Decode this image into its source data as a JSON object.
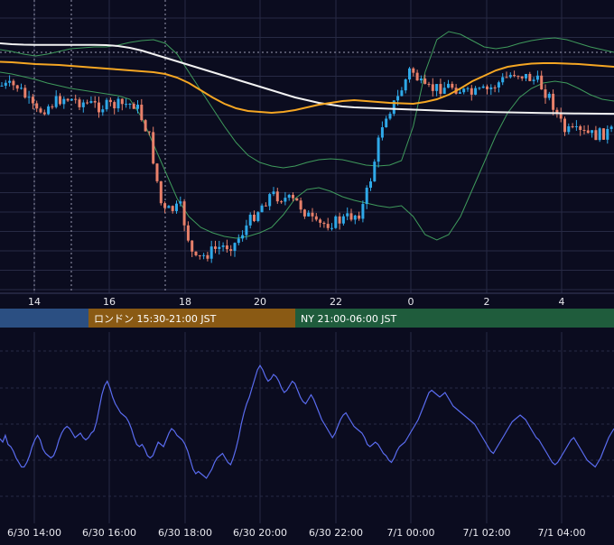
{
  "chart_data": [
    {
      "type": "candlestick",
      "x_ticks": [
        "14",
        "16",
        "18",
        "20",
        "22",
        "0",
        "2",
        "4"
      ],
      "sessions": [
        {
          "label": "",
          "color": "#2b4f82"
        },
        {
          "label": "ロンドン 15:30-21:00 JST",
          "color": "#8a5a14"
        },
        {
          "label": "NY 21:00-06:00 JST",
          "color": "#1f5c3c"
        }
      ],
      "colors": {
        "background": "#0b0c1f",
        "grid": "#272a44",
        "up_candle": "#2fa9e8",
        "down_candle": "#e8806a",
        "ema": "#f5a623",
        "long_ma": "#f2f2f2",
        "bollinger": "#3f9a5c",
        "oscillator": "#5a6cf0"
      },
      "ema": [
        28.5,
        29,
        30,
        31,
        31.5,
        32,
        33,
        34,
        35,
        36,
        37,
        38,
        39,
        40,
        42,
        46,
        52,
        60,
        68,
        75,
        80,
        83,
        84,
        85,
        84,
        82,
        79,
        76,
        74,
        72,
        71,
        72,
        73,
        74,
        74.5,
        75,
        73,
        70,
        65,
        58,
        50,
        44,
        38,
        34,
        32,
        30.5,
        30,
        30,
        30.5,
        31,
        32,
        33,
        34
      ],
      "long_ma": [
        8,
        9,
        9.5,
        9.7,
        9.8,
        9.8,
        9.7,
        9.7,
        9.8,
        10,
        11,
        13,
        16,
        20,
        24,
        28,
        32,
        36,
        40,
        44,
        48,
        52,
        56,
        60,
        64,
        68,
        71,
        74,
        76,
        78,
        79,
        79.5,
        80,
        80.5,
        81,
        81.5,
        82,
        82.5,
        83,
        83.3,
        83.6,
        83.9,
        84.2,
        84.5,
        84.7,
        85,
        85.2,
        85.4,
        85.6,
        85.8,
        85.9,
        86,
        86.1
      ],
      "bb_upper": [
        15,
        17,
        20,
        22,
        20,
        17,
        14,
        13,
        12,
        12,
        10,
        7,
        5,
        4,
        8,
        20,
        40,
        60,
        80,
        100,
        118,
        132,
        140,
        144,
        146,
        144,
        140,
        137,
        136,
        137,
        140,
        143,
        144,
        143,
        138,
        100,
        40,
        4,
        -5,
        -2,
        5,
        12,
        14,
        12,
        8,
        5,
        3,
        2,
        4,
        8,
        12,
        15,
        18
      ],
      "bb_lower": [
        40,
        42,
        45,
        48,
        52,
        55,
        58,
        60,
        62,
        64,
        66,
        70,
        90,
        120,
        150,
        180,
        200,
        212,
        218,
        222,
        224,
        222,
        218,
        212,
        198,
        180,
        170,
        168,
        172,
        178,
        182,
        185,
        188,
        190,
        188,
        200,
        220,
        226,
        220,
        200,
        170,
        140,
        110,
        85,
        68,
        58,
        52,
        50,
        52,
        58,
        65,
        70,
        72
      ],
      "oscillator": [
        35,
        32,
        38,
        30,
        28,
        24,
        18,
        14,
        10,
        10,
        14,
        20,
        28,
        34,
        38,
        34,
        26,
        22,
        20,
        18,
        20,
        26,
        34,
        40,
        44,
        46,
        44,
        40,
        36,
        38,
        40,
        36,
        34,
        36,
        40,
        42,
        50,
        62,
        74,
        82,
        86,
        80,
        72,
        66,
        62,
        58,
        56,
        54,
        50,
        44,
        36,
        30,
        28,
        30,
        26,
        20,
        18,
        20,
        26,
        32,
        30,
        28,
        34,
        40,
        44,
        42,
        38,
        36,
        34,
        30,
        24,
        16,
        8,
        4,
        6,
        4,
        2,
        0,
        4,
        8,
        14,
        18,
        20,
        22,
        18,
        14,
        12,
        18,
        26,
        36,
        48,
        58,
        66,
        72,
        80,
        88,
        96,
        100,
        96,
        90,
        86,
        88,
        92,
        90,
        86,
        80,
        76,
        78,
        82,
        86,
        84,
        78,
        72,
        68,
        66,
        70,
        74,
        70,
        64,
        58,
        52,
        48,
        44,
        40,
        36,
        40,
        46,
        52,
        56,
        58,
        54,
        50,
        46,
        44,
        42,
        40,
        36,
        30,
        28,
        30,
        32,
        30,
        26,
        22,
        20,
        16,
        14,
        18,
        24,
        28,
        30,
        32,
        36,
        40,
        44,
        48,
        52,
        58,
        64,
        70,
        76,
        78,
        76,
        74,
        72,
        74,
        76,
        72,
        68,
        64,
        62,
        60,
        58,
        56,
        54,
        52,
        50,
        48,
        44,
        40,
        36,
        32,
        28,
        24,
        22,
        26,
        30,
        34,
        38,
        42,
        46,
        50,
        52,
        54,
        56,
        54,
        52,
        48,
        44,
        40,
        36,
        34,
        30,
        26,
        22,
        18,
        14,
        12,
        14,
        18,
        22,
        26,
        30,
        34,
        36,
        32,
        28,
        24,
        20,
        16,
        14,
        12,
        10,
        14,
        18,
        24,
        30,
        36,
        40,
        44
      ]
    },
    {
      "type": "line",
      "x_ticks": [
        "6/30 14:00",
        "6/30 16:00",
        "6/30 18:00",
        "6/30 20:00",
        "6/30 22:00",
        "7/1 00:00",
        "7/1 02:00",
        "7/1 04:00"
      ]
    }
  ]
}
